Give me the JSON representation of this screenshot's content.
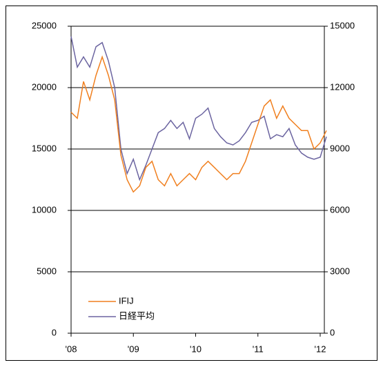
{
  "chart_data": {
    "type": "line",
    "x": [
      2008.0,
      2008.1,
      2008.2,
      2008.3,
      2008.4,
      2008.5,
      2008.6,
      2008.7,
      2008.8,
      2008.9,
      2009.0,
      2009.1,
      2009.2,
      2009.3,
      2009.4,
      2009.5,
      2009.6,
      2009.7,
      2009.8,
      2009.9,
      2010.0,
      2010.1,
      2010.2,
      2010.3,
      2010.4,
      2010.5,
      2010.6,
      2010.7,
      2010.8,
      2010.9,
      2011.0,
      2011.1,
      2011.2,
      2011.3,
      2011.4,
      2011.5,
      2011.6,
      2011.7,
      2011.8,
      2011.9,
      2012.0,
      2012.1
    ],
    "series": [
      {
        "name": "IFIJ",
        "color": "#f07f1e",
        "values": [
          18000,
          17500,
          20500,
          19000,
          21000,
          22500,
          21000,
          19000,
          14500,
          12500,
          11500,
          12000,
          13500,
          14000,
          12500,
          12000,
          13000,
          12000,
          12500,
          13000,
          12500,
          13500,
          14000,
          13500,
          13000,
          12500,
          13000,
          13000,
          14000,
          15500,
          17000,
          18500,
          19000,
          17500,
          18500,
          17500,
          17000,
          16500,
          16500,
          15000,
          15500,
          16500
        ]
      },
      {
        "name": "日経平均",
        "color": "#6b64a0",
        "axis": "y2",
        "values": [
          14500,
          13000,
          13500,
          13000,
          14000,
          14200,
          13300,
          12000,
          9000,
          7800,
          8500,
          7500,
          8200,
          9000,
          9800,
          10000,
          10400,
          10000,
          10300,
          9500,
          10500,
          10700,
          11000,
          10000,
          9600,
          9300,
          9200,
          9400,
          9800,
          10300,
          10400,
          10600,
          9500,
          9700,
          9600,
          10000,
          9200,
          8800,
          8600,
          8500,
          8600,
          9600
        ]
      }
    ],
    "xlim": [
      2008.0,
      2012.1
    ],
    "xticks": [
      {
        "value": 2008,
        "label": "'08"
      },
      {
        "value": 2009,
        "label": "'09"
      },
      {
        "value": 2010,
        "label": "'10"
      },
      {
        "value": 2011,
        "label": "'11"
      },
      {
        "value": 2012,
        "label": "'12"
      }
    ],
    "ylim": [
      0,
      25000
    ],
    "yticks": [
      0,
      5000,
      10000,
      15000,
      20000,
      25000
    ],
    "y2lim": [
      0,
      15000
    ],
    "y2ticks": [
      0,
      3000,
      6000,
      9000,
      12000,
      15000
    ],
    "grid": true,
    "legend": "lower left"
  }
}
